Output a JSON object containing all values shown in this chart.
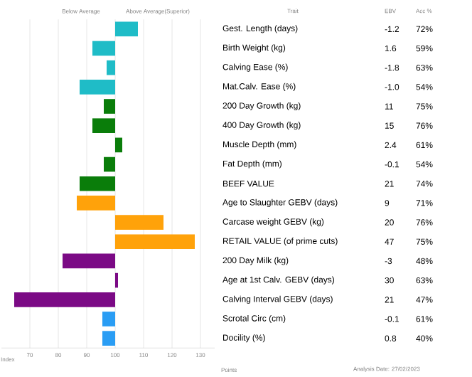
{
  "chart_data": [
    {
      "type": "bar",
      "orientation": "horizontal",
      "xlabel": "Index",
      "ylabel": "Trait",
      "categories": [
        "Gest. Length (days)",
        "Birth Weight (kg)",
        "Calving Ease (%)",
        "Mat.Calv. Ease (%)",
        "200 Day Growth (kg)",
        "400 Day Growth (kg)",
        "Muscle Depth (mm)",
        "Fat Depth (mm)",
        "BEEF VALUE",
        "Age to Slaughter GEBV (days)",
        "Carcase weight GEBV (kg)",
        "RETAIL VALUE (of prime cuts)",
        "200 Day Milk (kg)",
        "Age at 1st Calv. GEBV (days)",
        "Calving Interval GEBV (days)",
        "Scrotal Circ (cm)",
        "Docility (%)"
      ],
      "base": [
        100,
        100,
        100,
        100,
        100,
        100,
        100,
        100,
        100,
        100,
        100,
        100,
        100,
        100,
        100,
        100,
        100
      ],
      "values": [
        8,
        -8,
        -3,
        -12.5,
        -4,
        -8,
        2.5,
        -4,
        -12.5,
        -13.5,
        17,
        28,
        -18.5,
        1,
        -35.5,
        -4.5,
        -4.5
      ],
      "colors": [
        "#1fbcc7",
        "#1fbcc7",
        "#1fbcc7",
        "#1fbcc7",
        "#0a7d0a",
        "#0a7d0a",
        "#0a7d0a",
        "#0a7d0a",
        "#0a7d0a",
        "#ffa20a",
        "#ffa20a",
        "#ffa20a",
        "#7b0a85",
        "#7b0a85",
        "#7b0a85",
        "#2a9df4",
        "#2a9df4"
      ],
      "xlim": [
        60,
        135
      ],
      "xticks": [
        70,
        80,
        90,
        100,
        110,
        120,
        130
      ],
      "grid": "x",
      "annotations": [
        "Below Average",
        "Above Average(Superior)",
        "Points",
        "Analysis Date: 27/02/2023"
      ]
    },
    {
      "type": "other",
      "annotations": [
        "EBV",
        "Acc %",
        "-1.2",
        "1.6",
        "-1.8",
        "-1.0",
        "11",
        "15",
        "2.4",
        "-0.1",
        "21",
        "9",
        "20",
        "47",
        "-3",
        "30",
        "21",
        "-0.1",
        "0.8",
        "72%",
        "59%",
        "63%",
        "54%",
        "75%",
        "76%",
        "61%",
        "54%",
        "74%",
        "71%",
        "76%",
        "75%",
        "48%",
        "63%",
        "47%",
        "61%",
        "40%"
      ]
    }
  ]
}
